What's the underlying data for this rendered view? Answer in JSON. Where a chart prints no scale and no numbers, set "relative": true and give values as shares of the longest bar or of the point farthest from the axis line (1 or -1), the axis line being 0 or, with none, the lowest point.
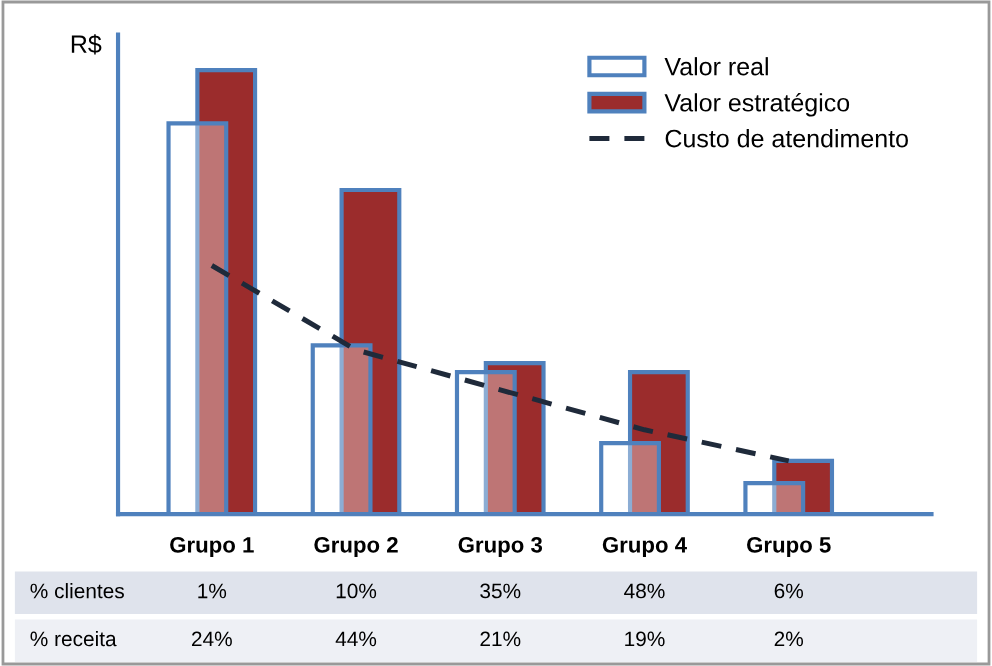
{
  "chart_data": {
    "type": "bar",
    "relative": true,
    "ylabel": "R$",
    "tick_labels": "x",
    "legend": "top right",
    "grid": false,
    "categories": [
      "Grupo 1",
      "Grupo 2",
      "Grupo 3",
      "Grupo 4",
      "Grupo 5"
    ],
    "series": [
      {
        "name": "Valor real",
        "color": "#ffffff",
        "values": [
          0.88,
          0.38,
          0.32,
          0.16,
          0.07
        ]
      },
      {
        "name": "Valor estratégico",
        "color": "#9b2c2c",
        "values": [
          1.0,
          0.73,
          0.34,
          0.32,
          0.12
        ]
      },
      {
        "name": "Custo de atendimento",
        "type": "line",
        "color": "#1f2a3a",
        "line_style": "dashed",
        "values": [
          0.56,
          0.37,
          0.28,
          0.19,
          0.12
        ]
      }
    ],
    "annotations": [
      "% clientes",
      "1%",
      "10%",
      "35%",
      "48%",
      "6%",
      "% receita",
      "24%",
      "44%",
      "21%",
      "19%",
      "2%"
    ]
  }
}
